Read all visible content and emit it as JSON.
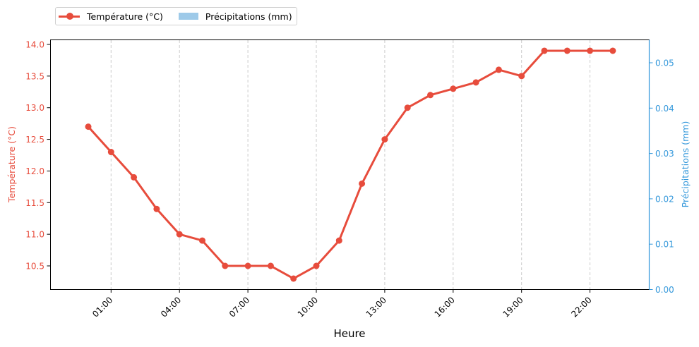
{
  "chart_data": {
    "type": "line",
    "title": "",
    "xlabel": "Heure",
    "ylabel": "Température (°C)",
    "y2label": "Précipitations (mm)",
    "x": [
      "00:00",
      "01:00",
      "02:00",
      "03:00",
      "04:00",
      "05:00",
      "06:00",
      "07:00",
      "08:00",
      "09:00",
      "10:00",
      "11:00",
      "12:00",
      "13:00",
      "14:00",
      "15:00",
      "16:00",
      "17:00",
      "18:00",
      "19:00",
      "20:00",
      "21:00",
      "22:00",
      "23:00"
    ],
    "xtick_labels": [
      "01:00",
      "04:00",
      "07:00",
      "10:00",
      "13:00",
      "16:00",
      "19:00",
      "22:00"
    ],
    "series": [
      {
        "name": "Température (°C)",
        "axis": "left",
        "type": "line",
        "color": "#e74c3c",
        "values": [
          12.7,
          12.3,
          11.9,
          11.4,
          11.0,
          10.9,
          10.5,
          10.5,
          10.5,
          10.3,
          10.5,
          10.9,
          11.8,
          12.5,
          13.0,
          13.2,
          13.3,
          13.4,
          13.6,
          13.5,
          13.9,
          13.9,
          13.9,
          13.9
        ]
      },
      {
        "name": "Précipitations (mm)",
        "axis": "right",
        "type": "bar",
        "color": "#9ecae9",
        "values": [
          0,
          0,
          0,
          0,
          0,
          0,
          0,
          0,
          0,
          0,
          0,
          0,
          0,
          0,
          0,
          0,
          0,
          0,
          0,
          0,
          0,
          0,
          0,
          0
        ]
      }
    ],
    "ylim": [
      10.1,
      14.07
    ],
    "yticks": [
      "10.5",
      "11.0",
      "11.5",
      "12.0",
      "12.5",
      "13.0",
      "13.5",
      "14.0"
    ],
    "y2lim": [
      0,
      0.055
    ],
    "y2ticks": [
      "0.00",
      "0.01",
      "0.02",
      "0.03",
      "0.04",
      "0.05"
    ],
    "grid": "vertical dashed on x ticks",
    "legend_position": "top-left above plot",
    "colors": {
      "temperature": "#e74c3c",
      "precipitation_axis": "#3498db",
      "precipitation_bar": "#9ecae9"
    }
  },
  "legend": {
    "temp_label": "Température (°C)",
    "precip_label": "Précipitations (mm)"
  }
}
